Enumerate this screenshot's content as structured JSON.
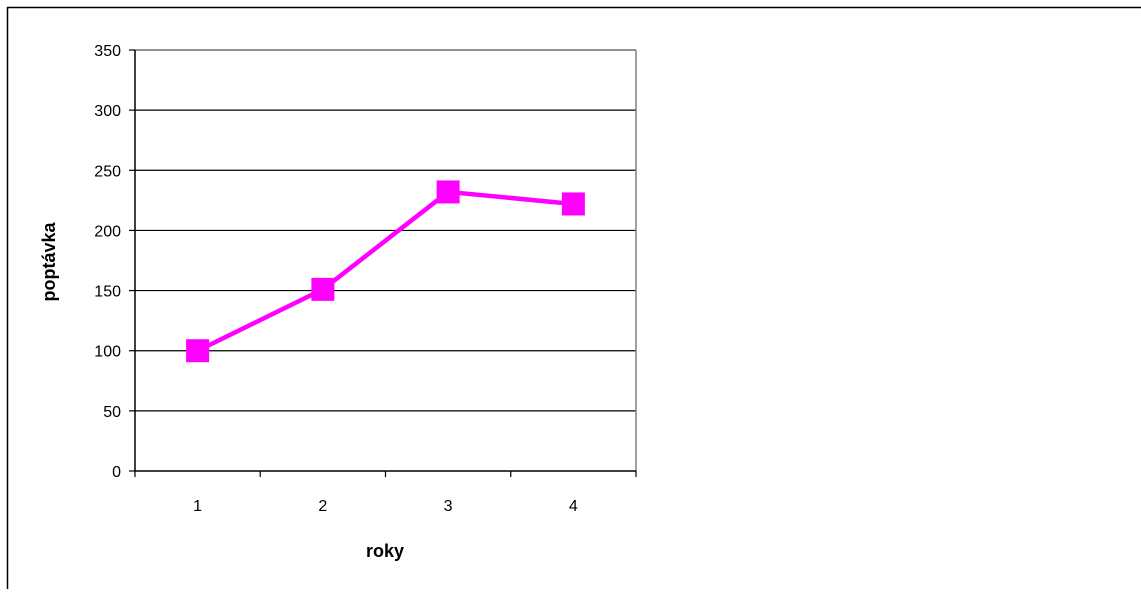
{
  "chart_data": {
    "type": "line",
    "title": "",
    "xlabel": "roky",
    "ylabel": "poptávka",
    "categories": [
      "1",
      "2",
      "3",
      "4"
    ],
    "series": [
      {
        "values": [
          100,
          151,
          232,
          222
        ]
      }
    ],
    "ylim": [
      0,
      350
    ],
    "yticks": [
      "0",
      "50",
      "100",
      "150",
      "200",
      "250",
      "300",
      "350"
    ],
    "grid": true,
    "legend": "none",
    "colors": {
      "line": "#ff00ff",
      "grid": "#000000",
      "frame": "#808080"
    },
    "marker": "square"
  }
}
